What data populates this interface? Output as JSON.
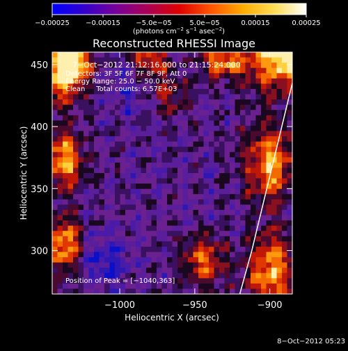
{
  "chart_data": {
    "type": "heatmap",
    "title": "Reconstructed RHESSI Image",
    "xlabel": "Heliocentric X (arcsec)",
    "ylabel": "Heliocentric Y (arcsec)",
    "xlim": [
      -1045,
      -885
    ],
    "ylim": [
      265,
      460
    ],
    "x_ticks": [
      {
        "value": -1000,
        "label": "−1000"
      },
      {
        "value": -950,
        "label": "−950"
      },
      {
        "value": -900,
        "label": "−900"
      }
    ],
    "y_ticks": [
      {
        "value": 300,
        "label": "300"
      },
      {
        "value": 350,
        "label": "350"
      },
      {
        "value": 400,
        "label": "400"
      },
      {
        "value": 450,
        "label": "450"
      }
    ],
    "colorbar": {
      "vmin": -0.00025,
      "vmax": 0.00025,
      "ticks": [
        {
          "value": -0.00025,
          "label": "−0.00025"
        },
        {
          "value": -0.00015,
          "label": "−0.00015"
        },
        {
          "value": -5e-05,
          "label": "−5.0e−05"
        },
        {
          "value": 5e-05,
          "label": "5.0e−05"
        },
        {
          "value": 0.00015,
          "label": "0.00015"
        },
        {
          "value": 0.00025,
          "label": "0.00025"
        }
      ],
      "unit_parts": [
        "(photons cm",
        "−2",
        " s",
        "−1",
        " asec",
        "−2",
        ")"
      ],
      "colormap_stops": [
        "#0000ff",
        "#3300cc",
        "#770099",
        "#aa0055",
        "#dd0000",
        "#ff5500",
        "#ffaa00",
        "#ffdd55",
        "#ffffff"
      ]
    },
    "annotations": [
      "7−Oct−2012 21:12:16.000 to 21:15:24.000",
      "Detectors: 3F 5F 6F 7F 8F 9F, Att 0",
      "Energy Range: 25.0 − 50.0 keV",
      "Clean     Total counts: 6.57E+03"
    ],
    "peak_label": "Position of Peak = [−1040,363]",
    "peak": {
      "x": -1040,
      "y": 363
    },
    "limb_curve": {
      "x": [
        -920,
        -912,
        -905,
        -898,
        -890,
        -884
      ],
      "y": [
        265,
        300,
        335,
        370,
        410,
        440
      ]
    },
    "footer_timestamp": "8−Oct−2012 05:23"
  }
}
